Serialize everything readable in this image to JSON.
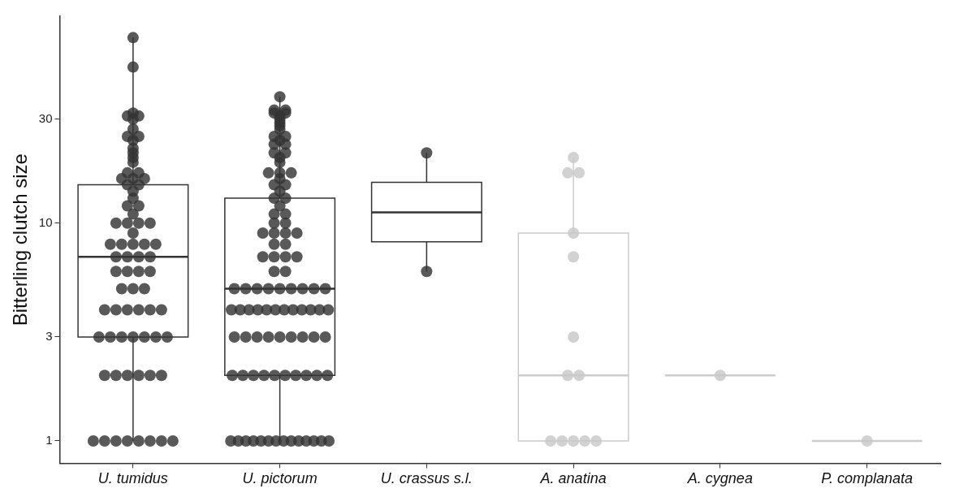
{
  "chart_data": {
    "type": "box",
    "ylabel": "Bitterling clutch size",
    "categories": [
      "U. tumidus",
      "U. pictorum",
      "U. crassus s.l.",
      "A. anatina",
      "A. cygnea",
      "P. complanata"
    ],
    "log": true,
    "ylim": [
      0.79,
      89
    ],
    "yticks": [
      1,
      3,
      10,
      30
    ],
    "grid": false,
    "legend": false,
    "series": [
      {
        "type": "box",
        "color": "#333333",
        "boxes": [
          {
            "low": 1,
            "q1": 3,
            "median": 7,
            "q3": 15,
            "high": 71
          },
          {
            "low": 1,
            "q1": 2,
            "median": 5,
            "q3": 13,
            "high": 38
          },
          {
            "low": 6,
            "q1": 8.2,
            "median": 11.2,
            "q3": 15.4,
            "high": 21
          },
          null,
          null,
          null
        ]
      },
      {
        "type": "box",
        "color": "#cccccc",
        "boxes": [
          null,
          null,
          null,
          {
            "low": 1,
            "q1": 1,
            "median": 2,
            "q3": 9,
            "high": 20
          },
          {
            "low": 2,
            "q1": 2,
            "median": 2,
            "q3": 2,
            "high": 2
          },
          {
            "low": 1,
            "q1": 1,
            "median": 1,
            "q3": 1,
            "high": 1
          }
        ]
      },
      {
        "type": "scatter",
        "color": "#333333",
        "x": [
          "U. tumidus",
          "U. tumidus",
          "U. tumidus",
          "U. tumidus",
          "U. tumidus",
          "U. tumidus",
          "U. tumidus",
          "U. tumidus",
          "U. tumidus",
          "U. tumidus",
          "U. tumidus",
          "U. tumidus",
          "U. tumidus",
          "U. tumidus",
          "U. tumidus",
          "U. tumidus",
          "U. tumidus",
          "U. tumidus",
          "U. tumidus",
          "U. tumidus",
          "U. tumidus",
          "U. tumidus",
          "U. tumidus",
          "U. tumidus",
          "U. tumidus",
          "U. tumidus",
          "U. tumidus",
          "U. tumidus",
          "U. tumidus",
          "U. tumidus",
          "U. tumidus",
          "U. tumidus",
          "U. tumidus",
          "U. tumidus",
          "U. tumidus",
          "U. tumidus",
          "U. tumidus",
          "U. tumidus",
          "U. tumidus",
          "U. tumidus",
          "U. tumidus",
          "U. tumidus",
          "U. tumidus",
          "U. tumidus",
          "U. tumidus",
          "U. tumidus",
          "U. tumidus",
          "U. tumidus",
          "U. tumidus",
          "U. tumidus",
          "U. tumidus",
          "U. tumidus",
          "U. tumidus",
          "U. tumidus",
          "U. tumidus",
          "U. tumidus",
          "U. tumidus",
          "U. tumidus",
          "U. tumidus",
          "U. tumidus",
          "U. tumidus",
          "U. tumidus",
          "U. tumidus",
          "U. tumidus",
          "U. tumidus",
          "U. tumidus",
          "U. tumidus",
          "U. tumidus",
          "U. tumidus",
          "U. tumidus",
          "U. tumidus",
          "U. tumidus",
          "U. tumidus",
          "U. tumidus"
        ],
        "values": [
          71,
          52,
          32,
          31,
          31,
          30,
          27,
          25,
          25,
          24,
          22,
          21,
          20,
          19,
          17,
          17,
          16,
          16,
          16,
          15,
          15,
          14,
          13,
          12,
          12,
          11,
          10,
          10,
          10,
          10,
          9,
          8,
          8,
          8,
          8,
          8,
          7,
          7,
          7,
          7,
          6,
          6,
          6,
          6,
          5,
          5,
          5,
          4,
          4,
          4,
          4,
          4,
          4,
          3,
          3,
          3,
          3,
          3,
          3,
          3,
          2,
          2,
          2,
          2,
          2,
          2,
          1,
          1,
          1,
          1,
          1,
          1,
          1,
          1
        ]
      },
      {
        "type": "scatter",
        "color": "#333333",
        "x": [
          "U. pictorum",
          "U. pictorum",
          "U. pictorum",
          "U. pictorum",
          "U. pictorum",
          "U. pictorum",
          "U. pictorum",
          "U. pictorum",
          "U. pictorum",
          "U. pictorum",
          "U. pictorum",
          "U. pictorum",
          "U. pictorum",
          "U. pictorum",
          "U. pictorum",
          "U. pictorum",
          "U. pictorum",
          "U. pictorum",
          "U. pictorum",
          "U. pictorum",
          "U. pictorum",
          "U. pictorum",
          "U. pictorum",
          "U. pictorum",
          "U. pictorum",
          "U. pictorum",
          "U. pictorum",
          "U. pictorum",
          "U. pictorum",
          "U. pictorum",
          "U. pictorum",
          "U. pictorum",
          "U. pictorum",
          "U. pictorum",
          "U. pictorum",
          "U. pictorum",
          "U. pictorum",
          "U. pictorum",
          "U. pictorum",
          "U. pictorum",
          "U. pictorum",
          "U. pictorum",
          "U. pictorum",
          "U. pictorum",
          "U. pictorum",
          "U. pictorum",
          "U. pictorum",
          "U. pictorum",
          "U. pictorum",
          "U. pictorum",
          "U. pictorum",
          "U. pictorum",
          "U. pictorum",
          "U. pictorum",
          "U. pictorum",
          "U. pictorum",
          "U. pictorum",
          "U. pictorum",
          "U. pictorum",
          "U. pictorum",
          "U. pictorum",
          "U. pictorum",
          "U. pictorum",
          "U. pictorum",
          "U. pictorum",
          "U. pictorum",
          "U. pictorum",
          "U. pictorum",
          "U. pictorum",
          "U. pictorum",
          "U. pictorum",
          "U. pictorum",
          "U. pictorum",
          "U. pictorum",
          "U. pictorum",
          "U. pictorum",
          "U. pictorum",
          "U. pictorum",
          "U. pictorum",
          "U. pictorum",
          "U. pictorum",
          "U. pictorum",
          "U. pictorum",
          "U. pictorum",
          "U. pictorum",
          "U. pictorum",
          "U. pictorum",
          "U. pictorum",
          "U. pictorum",
          "U. pictorum",
          "U. pictorum",
          "U. pictorum",
          "U. pictorum",
          "U. pictorum",
          "U. pictorum",
          "U. pictorum",
          "U. pictorum",
          "U. pictorum",
          "U. pictorum"
        ],
        "values": [
          38,
          33,
          33,
          32,
          32,
          31,
          30,
          29,
          28,
          27,
          25,
          25,
          24,
          23,
          23,
          21,
          21,
          20,
          19,
          17,
          17,
          17,
          16,
          15,
          15,
          14,
          13,
          13,
          12,
          11,
          11,
          10,
          10,
          9,
          9,
          9,
          9,
          8,
          8,
          7,
          7,
          7,
          7,
          6,
          6,
          5,
          5,
          5,
          5,
          5,
          5,
          5,
          5,
          5,
          4,
          4,
          4,
          4,
          4,
          4,
          4,
          4,
          4,
          4,
          4,
          4,
          3,
          3,
          3,
          3,
          3,
          3,
          3,
          3,
          3,
          2,
          2,
          2,
          2,
          2,
          2,
          2,
          2,
          2,
          2,
          1,
          1,
          1,
          1,
          1,
          1,
          1,
          1,
          1,
          1,
          1,
          1,
          1,
          1
        ]
      },
      {
        "type": "scatter",
        "color": "#333333",
        "x": [
          "U. crassus s.l.",
          "U. crassus s.l."
        ],
        "values": [
          21,
          6
        ]
      },
      {
        "type": "scatter",
        "color": "#c8c8c8",
        "x": [
          "A. anatina",
          "A. anatina",
          "A. anatina",
          "A. anatina",
          "A. anatina",
          "A. anatina",
          "A. anatina",
          "A. anatina",
          "A. anatina",
          "A. anatina",
          "A. anatina",
          "A. anatina",
          "A. anatina",
          "A. cygnea",
          "P. complanata"
        ],
        "values": [
          20,
          17,
          17,
          9,
          7,
          3,
          2,
          2,
          1,
          1,
          1,
          1,
          1,
          2,
          1
        ]
      }
    ]
  }
}
